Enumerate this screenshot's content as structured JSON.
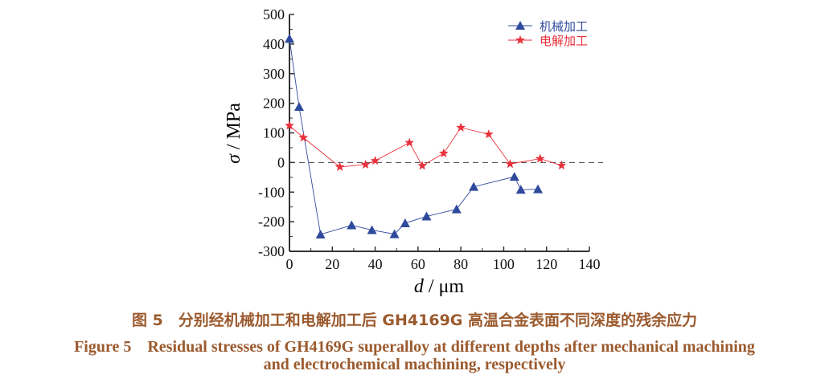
{
  "chart_data": {
    "type": "line",
    "xlabel_var": "d",
    "xlabel_unit": " / μm",
    "ylabel_var": "σ",
    "ylabel_unit": " / MPa",
    "xlim": [
      0,
      140
    ],
    "ylim": [
      -300,
      500
    ],
    "xticks": [
      0,
      20,
      40,
      60,
      80,
      100,
      120,
      140
    ],
    "yticks": [
      -300,
      -200,
      -100,
      0,
      100,
      200,
      300,
      400,
      500
    ],
    "reference_line": 0,
    "legend_position": "top-right",
    "series": [
      {
        "name": "机械加工",
        "color": "#2f4a9c",
        "marker": "triangle",
        "x": [
          0,
          4.5,
          14.5,
          29,
          38.5,
          49,
          54,
          64,
          78,
          86,
          105,
          108,
          116
        ],
        "y": [
          418,
          188,
          -243,
          -212,
          -228,
          -242,
          -205,
          -182,
          -158,
          -82,
          -48,
          -92,
          -90
        ]
      },
      {
        "name": "电解加工",
        "color": "#e8323c",
        "marker": "star",
        "x": [
          0,
          6.5,
          23.5,
          35.5,
          40,
          56,
          62,
          72,
          80,
          93,
          103,
          117,
          127
        ],
        "y": [
          125,
          84,
          -15,
          -7,
          6,
          67,
          -11,
          31,
          118,
          95,
          -5,
          13,
          -10
        ]
      }
    ]
  },
  "caption": {
    "cn": "图 5　分别经机械加工和电解加工后 GH4169G 高温合金表面不同深度的残余应力",
    "en1": "Figure 5　Residual stresses of GH4169G superalloy at different depths after mechanical machining",
    "en2": "and electrochemical machining, respectively"
  }
}
